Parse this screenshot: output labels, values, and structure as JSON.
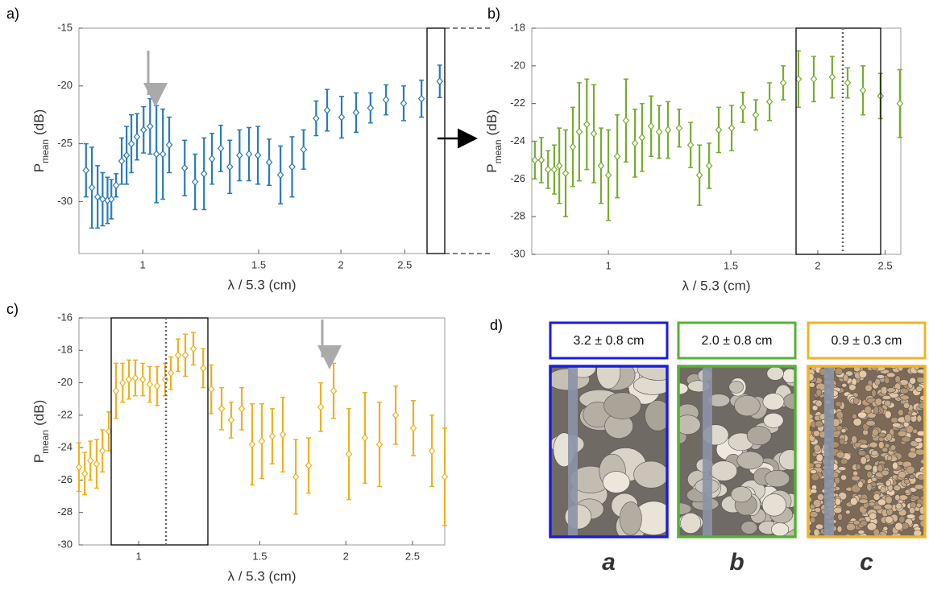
{
  "chart_data": [
    {
      "type": "errorbar",
      "panel_label": "a)",
      "xlabel": "λ / 5.3 (cm)",
      "ylabel": [
        "P",
        "mean",
        "(dB)"
      ],
      "xscale": "log",
      "xlim": [
        0.8,
        2.876
      ],
      "ylim": [
        -34.5,
        -15
      ],
      "xticks": [
        1,
        1.5,
        2,
        2.5
      ],
      "yticks": [
        -15,
        -20,
        -25,
        -30
      ],
      "color": "#2a7ab9",
      "x": [
        0.82,
        0.837,
        0.854,
        0.869,
        0.884,
        0.896,
        0.911,
        0.929,
        0.945,
        0.961,
        0.98,
        1.003,
        1.026,
        1.049,
        1.073,
        1.097,
        1.158,
        1.201,
        1.239,
        1.274,
        1.314,
        1.356,
        1.403,
        1.45,
        1.496,
        1.556,
        1.619,
        1.686,
        1.755,
        1.834,
        1.906,
        2.005,
        2.109,
        2.218,
        2.342,
        2.491,
        2.651,
        2.826
      ],
      "values": [
        -27.3,
        -28.8,
        -29.6,
        -29.8,
        -29.9,
        -29.8,
        -28.6,
        -26.5,
        -26.0,
        -25.0,
        -24.4,
        -23.8,
        -23.5,
        -25.9,
        -25.9,
        -25.1,
        -27.1,
        -28.3,
        -27.6,
        -26.3,
        -25.4,
        -27.0,
        -26.0,
        -25.9,
        -26.0,
        -26.6,
        -27.7,
        -27.0,
        -25.5,
        -22.8,
        -22.1,
        -22.7,
        -22.3,
        -21.9,
        -21.2,
        -21.5,
        -21.1,
        -19.6
      ],
      "errors": [
        2.3,
        3.5,
        2.7,
        2.3,
        2.0,
        1.7,
        1.0,
        2.0,
        2.5,
        2.5,
        2.0,
        2.0,
        2.4,
        4.2,
        3.9,
        2.4,
        2.4,
        2.4,
        3.1,
        2.2,
        2.0,
        2.3,
        2.2,
        2.3,
        2.5,
        2.0,
        2.5,
        2.6,
        1.7,
        1.5,
        1.8,
        1.8,
        1.7,
        1.3,
        1.3,
        1.5,
        1.6,
        1.4
      ]
    },
    {
      "type": "errorbar",
      "panel_label": "b)",
      "xlabel": "λ / 5.3 (cm)",
      "ylabel": [
        "P",
        "mean",
        "(dB)"
      ],
      "xscale": "log",
      "xlim": [
        0.776,
        2.633
      ],
      "ylim": [
        -30,
        -18
      ],
      "xticks": [
        1,
        1.5,
        2,
        2.5
      ],
      "yticks": [
        -18,
        -20,
        -22,
        -24,
        -26,
        -28,
        -30
      ],
      "color": "#77ac30",
      "x": [
        0.784,
        0.801,
        0.819,
        0.836,
        0.85,
        0.868,
        0.889,
        0.908,
        0.931,
        0.953,
        0.976,
        1.0,
        1.03,
        1.06,
        1.092,
        1.118,
        1.152,
        1.183,
        1.218,
        1.264,
        1.313,
        1.352,
        1.396,
        1.441,
        1.504,
        1.561,
        1.629,
        1.705,
        1.784,
        1.876,
        1.974,
        2.098,
        2.208,
        2.323,
        2.462,
        2.625
      ],
      "values": [
        -25.0,
        -25.0,
        -25.5,
        -25.5,
        -25.3,
        -25.7,
        -24.3,
        -23.5,
        -23.1,
        -23.6,
        -25.3,
        -25.8,
        -24.8,
        -22.9,
        -24.1,
        -23.8,
        -23.2,
        -23.5,
        -23.4,
        -23.3,
        -24.2,
        -25.8,
        -25.3,
        -23.4,
        -23.3,
        -22.2,
        -22.6,
        -21.9,
        -20.9,
        -20.7,
        -20.7,
        -20.6,
        -20.9,
        -21.3,
        -21.6,
        -22.0
      ],
      "errors": [
        1.0,
        1.2,
        1.0,
        1.3,
        2.0,
        2.3,
        2.1,
        2.6,
        2.4,
        2.6,
        2.0,
        2.4,
        2.2,
        2.2,
        1.8,
        1.8,
        1.6,
        1.4,
        1.5,
        1.0,
        1.2,
        1.6,
        1.2,
        1.2,
        1.2,
        0.8,
        0.8,
        1.0,
        0.9,
        1.5,
        1.2,
        1.1,
        0.8,
        1.3,
        1.2,
        1.8
      ]
    },
    {
      "type": "errorbar",
      "panel_label": "c)",
      "xlabel": "λ / 5.3 (cm)",
      "ylabel": [
        "P",
        "mean",
        "(dB)"
      ],
      "xscale": "log",
      "xlim": [
        0.819,
        2.785
      ],
      "ylim": [
        -30,
        -16
      ],
      "xticks": [
        1,
        1.5,
        2,
        2.5
      ],
      "yticks": [
        -16,
        -18,
        -20,
        -22,
        -24,
        -26,
        -28,
        -30
      ],
      "color": "#edb120",
      "x": [
        0.819,
        0.835,
        0.851,
        0.869,
        0.886,
        0.905,
        0.927,
        0.948,
        0.968,
        0.989,
        1.014,
        1.038,
        1.064,
        1.093,
        1.114,
        1.141,
        1.169,
        1.201,
        1.241,
        1.275,
        1.32,
        1.363,
        1.412,
        1.462,
        1.51,
        1.564,
        1.62,
        1.692,
        1.766,
        1.839,
        1.92,
        2.021,
        2.132,
        2.239,
        2.363,
        2.507,
        2.668,
        2.785
      ],
      "values": [
        -25.2,
        -25.6,
        -24.8,
        -25.0,
        -24.2,
        -23.0,
        -20.5,
        -20.0,
        -19.8,
        -19.7,
        -19.8,
        -20.1,
        -20.2,
        -19.8,
        -19.4,
        -18.3,
        -18.3,
        -17.9,
        -19.1,
        -20.4,
        -21.6,
        -22.3,
        -21.6,
        -23.8,
        -23.6,
        -23.3,
        -23.2,
        -25.8,
        -25.1,
        -21.5,
        -20.5,
        -24.4,
        -23.4,
        -23.8,
        -22.0,
        -22.8,
        -24.2,
        -25.8
      ],
      "errors": [
        1.5,
        1.3,
        1.2,
        1.5,
        1.3,
        1.2,
        1.7,
        1.2,
        1.2,
        1.1,
        1.0,
        1.1,
        1.2,
        1.0,
        1.0,
        1.0,
        1.3,
        1.0,
        1.2,
        1.5,
        1.3,
        1.1,
        1.3,
        2.5,
        2.3,
        1.7,
        2.3,
        2.3,
        1.7,
        1.5,
        1.7,
        2.8,
        2.8,
        2.6,
        1.8,
        1.7,
        2.2,
        3.0
      ]
    }
  ],
  "panel_d": {
    "label": "d)",
    "samples": [
      {
        "size": "3.2 ± 0.8 cm",
        "letter": "a",
        "color": "#1c1ce0"
      },
      {
        "size": "2.0 ± 0.8 cm",
        "letter": "b",
        "color": "#55b135"
      },
      {
        "size": "0.9 ± 0.3 cm",
        "letter": "c",
        "color": "#f0b429"
      }
    ]
  }
}
